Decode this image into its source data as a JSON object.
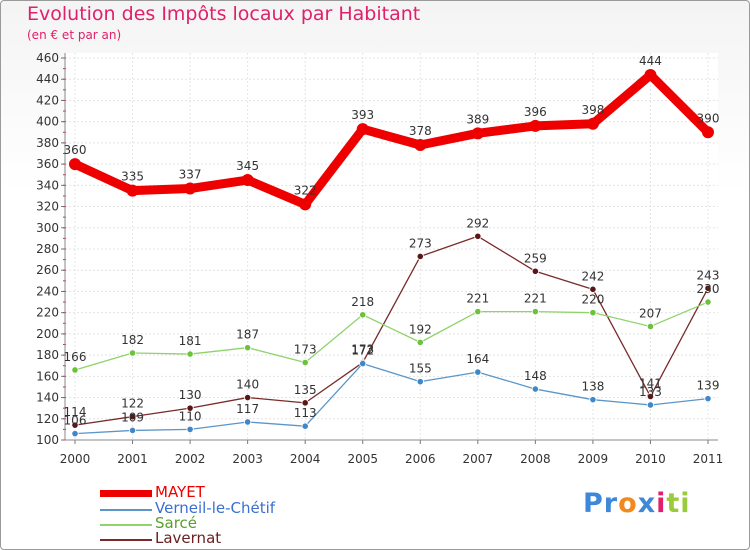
{
  "chart_data": {
    "type": "line",
    "title": "Evolution des Impôts locaux par Habitant",
    "subtitle": "(en € et par an)",
    "xlabel": "",
    "ylabel": "",
    "ylim": [
      100,
      460
    ],
    "ytick_step": 20,
    "grid": true,
    "legend_position": "bottom-left",
    "x": [
      "2000",
      "2001",
      "2002",
      "2003",
      "2004",
      "2005",
      "2006",
      "2007",
      "2008",
      "2009",
      "2010",
      "2011"
    ],
    "series": [
      {
        "name": "MAYET",
        "color": "#ee0000",
        "emphasis": true,
        "values": [
          360,
          335,
          337,
          345,
          322,
          393,
          378,
          389,
          396,
          398,
          444,
          390
        ]
      },
      {
        "name": "Verneil-le-Chétif",
        "color": "#5b96c8",
        "point_color": "#3f87c9",
        "emphasis": false,
        "values": [
          106,
          109,
          110,
          117,
          113,
          172,
          155,
          164,
          148,
          138,
          133,
          139
        ]
      },
      {
        "name": "Sarcé",
        "color": "#8fd36a",
        "point_color": "#6cc23a",
        "emphasis": false,
        "values": [
          166,
          182,
          181,
          187,
          173,
          218,
          192,
          221,
          221,
          220,
          207,
          230
        ]
      },
      {
        "name": "Lavernat",
        "color": "#7a2a2a",
        "point_color": "#5a1616",
        "emphasis": false,
        "values": [
          114,
          122,
          130,
          140,
          135,
          173,
          273,
          292,
          259,
          242,
          141,
          243
        ]
      }
    ]
  },
  "legend": {
    "label_colors": [
      "#ee0000",
      "#3a6fd0",
      "#5a9f2a",
      "#6a2020"
    ]
  },
  "logo": {
    "letters": [
      "P",
      "r",
      "o",
      "x",
      "i",
      "t",
      "i"
    ],
    "colors": [
      "#3d88d8",
      "#3d88d8",
      "#f08a1c",
      "#3d88d8",
      "#e0206a",
      "#9acb3a",
      "#9acb3a"
    ]
  }
}
